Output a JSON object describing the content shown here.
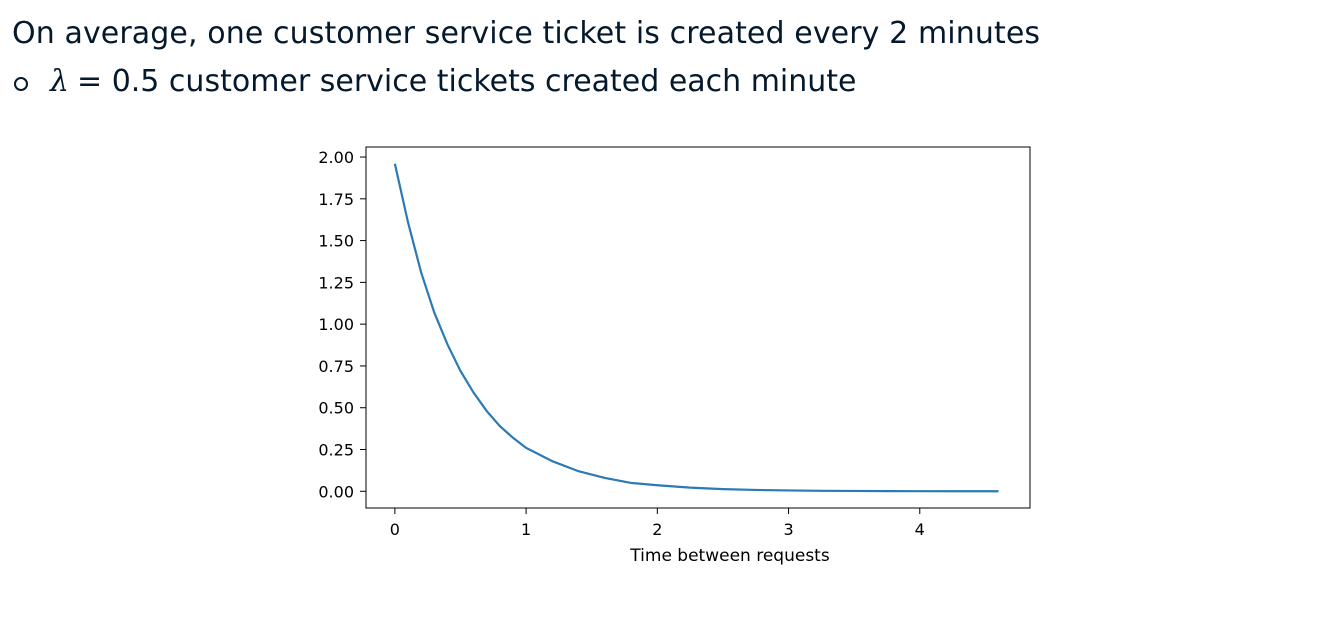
{
  "text": {
    "line1": "On average, one customer service ticket is created every 2 minutes",
    "bullet_symbol": "λ",
    "bullet_text": "= 0.5 customer service tickets created each minute"
  },
  "colors": {
    "line": "#2a7ab6",
    "text": "#05192d"
  },
  "chart_data": {
    "type": "line",
    "title": "",
    "xlabel": "Time between requests",
    "ylabel": "",
    "xlim": [
      -0.22,
      4.84
    ],
    "ylim": [
      -0.1,
      2.06
    ],
    "xticks": [
      0,
      1,
      2,
      3,
      4
    ],
    "xtick_labels": [
      "0",
      "1",
      "2",
      "3",
      "4"
    ],
    "yticks": [
      0,
      0.25,
      0.5,
      0.75,
      1,
      1.25,
      1.5,
      1.75,
      2
    ],
    "ytick_labels": [
      "0.00",
      "0.25",
      "0.50",
      "0.75",
      "1.00",
      "1.25",
      "1.50",
      "1.75",
      "2.00"
    ],
    "grid": false,
    "series": [
      {
        "x": [
          0.0,
          0.1,
          0.2,
          0.3,
          0.4,
          0.5,
          0.6,
          0.7,
          0.8,
          0.9,
          1.0,
          1.2,
          1.4,
          1.6,
          1.8,
          2.0,
          2.25,
          2.5,
          2.75,
          3.0,
          3.25,
          3.5,
          3.75,
          4.0,
          4.3,
          4.6
        ],
        "y": [
          1.96,
          1.61,
          1.31,
          1.07,
          0.88,
          0.72,
          0.59,
          0.48,
          0.39,
          0.32,
          0.26,
          0.18,
          0.12,
          0.08,
          0.05,
          0.036,
          0.022,
          0.013,
          0.008,
          0.005,
          0.003,
          0.002,
          0.001,
          0.0007,
          0.0004,
          0.0002
        ]
      }
    ]
  }
}
